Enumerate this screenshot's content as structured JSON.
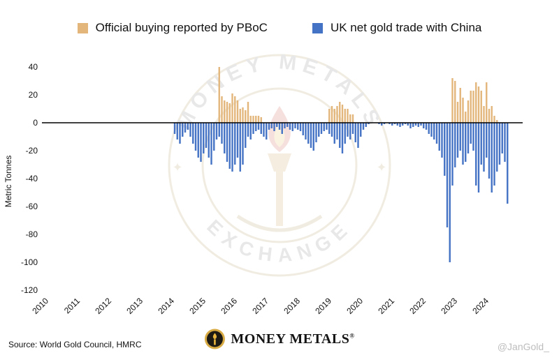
{
  "legend": [
    {
      "label": "Official buying reported by PBoC",
      "color": "#e3b77c"
    },
    {
      "label": "UK net gold trade with China",
      "color": "#4472c4"
    }
  ],
  "watermark": {
    "arc_top": "MONEY METALS",
    "arc_bottom": "EXCHANGE",
    "star": "✦"
  },
  "footer": {
    "source": "Source: World Gold Council, HMRC",
    "brand": "MONEY METALS",
    "reg": "®",
    "handle": "@JanGold_"
  },
  "chart_data": {
    "type": "bar",
    "title": "",
    "xlabel": "",
    "ylabel": "Metric Tonnes",
    "ylim": [
      -120,
      40
    ],
    "yticks": [
      40,
      20,
      0,
      -20,
      -40,
      -60,
      -80,
      -100,
      -120
    ],
    "xticks": [
      "2010",
      "2011",
      "2012",
      "2013",
      "2014",
      "2015",
      "2016",
      "2017",
      "2018",
      "2019",
      "2020",
      "2021",
      "2022",
      "2023",
      "2024"
    ],
    "x_start_month": "2014-01",
    "x_frequency": "monthly",
    "grid": false,
    "legend_position": "top",
    "series": [
      {
        "name": "Official buying reported by PBoC",
        "color": "#e3b77c",
        "values": [
          0,
          0,
          0,
          0,
          0,
          0,
          0,
          0,
          0,
          0,
          0,
          0,
          0,
          0,
          0,
          0,
          0,
          40,
          19,
          16,
          15,
          14,
          21,
          19,
          16,
          10,
          11,
          9,
          15,
          5,
          5,
          5,
          5,
          4,
          0,
          0,
          0,
          0,
          0,
          0,
          0,
          0,
          0,
          0,
          0,
          0,
          0,
          0,
          0,
          0,
          0,
          0,
          0,
          0,
          0,
          0,
          0,
          0,
          0,
          10,
          12,
          10,
          12,
          15,
          13,
          10,
          10,
          6,
          6,
          0,
          0,
          0,
          0,
          0,
          0,
          0,
          0,
          0,
          0,
          0,
          0,
          0,
          0,
          0,
          0,
          0,
          0,
          0,
          0,
          0,
          0,
          0,
          0,
          0,
          0,
          0,
          0,
          0,
          0,
          0,
          0,
          0,
          0,
          0,
          0,
          0,
          32,
          30,
          15,
          25,
          18,
          8,
          16,
          23,
          23,
          29,
          26,
          23,
          12,
          29,
          10,
          12,
          5,
          2,
          0,
          0,
          0,
          0
        ]
      },
      {
        "name": "UK net gold trade with China",
        "color": "#4472c4",
        "values": [
          -8,
          -12,
          -15,
          -10,
          -7,
          -5,
          -10,
          -15,
          -20,
          -25,
          -28,
          -22,
          -18,
          -25,
          -30,
          -20,
          -12,
          -10,
          -15,
          -22,
          -28,
          -33,
          -35,
          -30,
          -25,
          -35,
          -30,
          -18,
          -10,
          -12,
          -8,
          -6,
          -5,
          -8,
          -10,
          -12,
          -5,
          -4,
          -6,
          -3,
          -5,
          -8,
          -4,
          -3,
          -5,
          -6,
          -4,
          -5,
          -6,
          -9,
          -12,
          -15,
          -18,
          -20,
          -14,
          -10,
          -8,
          -6,
          -5,
          -8,
          -10,
          -15,
          -12,
          -18,
          -22,
          -15,
          -10,
          -12,
          -8,
          -14,
          -18,
          -10,
          -5,
          -3,
          -1,
          0,
          0,
          0,
          -1,
          -2,
          -1,
          0,
          -1,
          -2,
          -1,
          -2,
          -3,
          -2,
          -1,
          -2,
          -4,
          -3,
          -2,
          -3,
          -2,
          -4,
          -5,
          -8,
          -10,
          -12,
          -15,
          -20,
          -25,
          -38,
          -75,
          -100,
          -45,
          -32,
          -25,
          -20,
          -30,
          -28,
          -22,
          -15,
          -20,
          -45,
          -50,
          -30,
          -35,
          -25,
          -40,
          -50,
          -45,
          -35,
          -30,
          -22,
          -28,
          -58
        ]
      }
    ]
  }
}
